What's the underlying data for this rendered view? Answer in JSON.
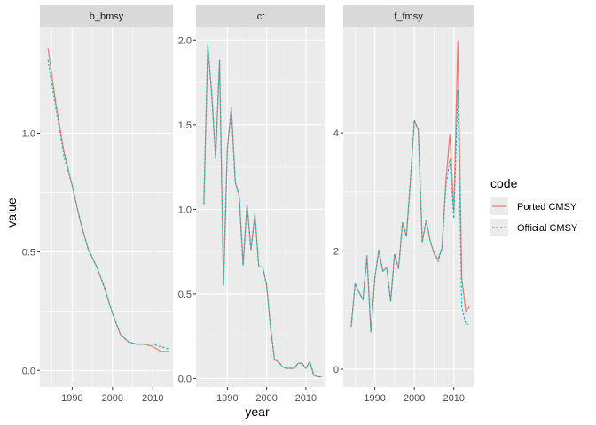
{
  "chart_data": {
    "type": "line",
    "facet_layout": "1 row, 3 columns, independent y axes",
    "xlabel": "year",
    "ylabel": "value",
    "x_ticks": [
      1990,
      2000,
      2010
    ],
    "legend": {
      "title": "code",
      "placement": "right",
      "entries": [
        {
          "label": "Ported CMSY",
          "color": "#F8766D",
          "style": "solid"
        },
        {
          "label": "Official CMSY",
          "color": "#00BFC4",
          "style": "dotted"
        }
      ]
    },
    "panels": [
      {
        "strip": "b_bmsy",
        "xlim": [
          1982,
          2015
        ],
        "ylim": [
          -0.07,
          1.45
        ],
        "y_ticks": [
          0.0,
          0.5,
          1.0
        ],
        "y_tick_labels": [
          "0.0",
          "0.5",
          "1.0"
        ],
        "series": [
          {
            "name": "Ported CMSY",
            "x": [
              1984,
              1986,
              1988,
              1990,
              1992,
              1994,
              1996,
              1998,
              2000,
              2002,
              2004,
              2006,
              2008,
              2010,
              2012,
              2014
            ],
            "y": [
              1.36,
              1.12,
              0.92,
              0.78,
              0.63,
              0.51,
              0.44,
              0.35,
              0.24,
              0.15,
              0.12,
              0.11,
              0.11,
              0.1,
              0.08,
              0.08
            ]
          },
          {
            "name": "Official CMSY",
            "x": [
              1984,
              1986,
              1988,
              1990,
              1992,
              1994,
              1996,
              1998,
              2000,
              2002,
              2004,
              2006,
              2008,
              2010,
              2012,
              2014
            ],
            "y": [
              1.31,
              1.1,
              0.9,
              0.78,
              0.63,
              0.51,
              0.44,
              0.35,
              0.24,
              0.15,
              0.12,
              0.11,
              0.11,
              0.11,
              0.1,
              0.09
            ]
          }
        ]
      },
      {
        "strip": "ct",
        "xlim": [
          1982,
          2015
        ],
        "ylim": [
          -0.05,
          2.08
        ],
        "y_ticks": [
          0.0,
          0.5,
          1.0,
          1.5,
          2.0
        ],
        "y_tick_labels": [
          "0.0",
          "0.5",
          "1.0",
          "1.5",
          "2.0"
        ],
        "series": [
          {
            "name": "Ported CMSY",
            "x": [
              1984,
              1985,
              1986,
              1987,
              1988,
              1989,
              1990,
              1991,
              1992,
              1993,
              1994,
              1995,
              1996,
              1997,
              1998,
              1999,
              2000,
              2001,
              2002,
              2003,
              2004,
              2005,
              2006,
              2007,
              2008,
              2009,
              2010,
              2011,
              2012,
              2013,
              2014
            ],
            "y": [
              1.03,
              1.97,
              1.68,
              1.3,
              1.88,
              0.55,
              1.36,
              1.6,
              1.16,
              1.08,
              0.67,
              1.03,
              0.76,
              0.97,
              0.66,
              0.66,
              0.55,
              0.3,
              0.11,
              0.1,
              0.07,
              0.06,
              0.06,
              0.06,
              0.09,
              0.09,
              0.06,
              0.1,
              0.02,
              0.01,
              0.01
            ]
          },
          {
            "name": "Official CMSY",
            "x": [
              1984,
              1985,
              1986,
              1987,
              1988,
              1989,
              1990,
              1991,
              1992,
              1993,
              1994,
              1995,
              1996,
              1997,
              1998,
              1999,
              2000,
              2001,
              2002,
              2003,
              2004,
              2005,
              2006,
              2007,
              2008,
              2009,
              2010,
              2011,
              2012,
              2013,
              2014
            ],
            "y": [
              1.03,
              1.97,
              1.68,
              1.3,
              1.88,
              0.55,
              1.36,
              1.6,
              1.16,
              1.08,
              0.67,
              1.03,
              0.76,
              0.97,
              0.66,
              0.66,
              0.55,
              0.3,
              0.11,
              0.1,
              0.07,
              0.06,
              0.06,
              0.06,
              0.09,
              0.09,
              0.06,
              0.1,
              0.02,
              0.01,
              0.01
            ]
          }
        ]
      },
      {
        "strip": "f_fmsy",
        "xlim": [
          1982,
          2015
        ],
        "ylim": [
          -0.3,
          5.8
        ],
        "y_ticks": [
          0,
          2,
          4
        ],
        "y_tick_labels": [
          "0",
          "2",
          "4"
        ],
        "series": [
          {
            "name": "Ported CMSY",
            "x": [
              1984,
              1985,
              1986,
              1987,
              1988,
              1989,
              1990,
              1991,
              1992,
              1993,
              1994,
              1995,
              1996,
              1997,
              1998,
              1999,
              2000,
              2001,
              2002,
              2003,
              2004,
              2005,
              2006,
              2007,
              2008,
              2009,
              2010,
              2011,
              2012,
              2013,
              2014
            ],
            "y": [
              0.72,
              1.45,
              1.3,
              1.18,
              1.92,
              0.63,
              1.55,
              2.02,
              1.66,
              1.72,
              1.15,
              1.95,
              1.7,
              2.48,
              2.25,
              3.2,
              4.21,
              4.05,
              2.15,
              2.52,
              2.18,
              1.96,
              1.86,
              2.05,
              3.2,
              3.98,
              2.65,
              5.55,
              1.55,
              0.98,
              1.06
            ]
          },
          {
            "name": "Official CMSY",
            "x": [
              1984,
              1985,
              1986,
              1987,
              1988,
              1989,
              1990,
              1991,
              1992,
              1993,
              1994,
              1995,
              1996,
              1997,
              1998,
              1999,
              2000,
              2001,
              2002,
              2003,
              2004,
              2005,
              2006,
              2007,
              2008,
              2009,
              2010,
              2011,
              2012,
              2013,
              2014
            ],
            "y": [
              0.72,
              1.45,
              1.3,
              1.18,
              1.92,
              0.63,
              1.55,
              2.0,
              1.66,
              1.72,
              1.15,
              1.95,
              1.7,
              2.48,
              2.25,
              3.2,
              4.21,
              4.05,
              2.15,
              2.52,
              2.18,
              1.96,
              1.82,
              2.05,
              3.1,
              3.55,
              2.55,
              4.72,
              1.05,
              0.76,
              0.76
            ]
          }
        ]
      }
    ]
  }
}
